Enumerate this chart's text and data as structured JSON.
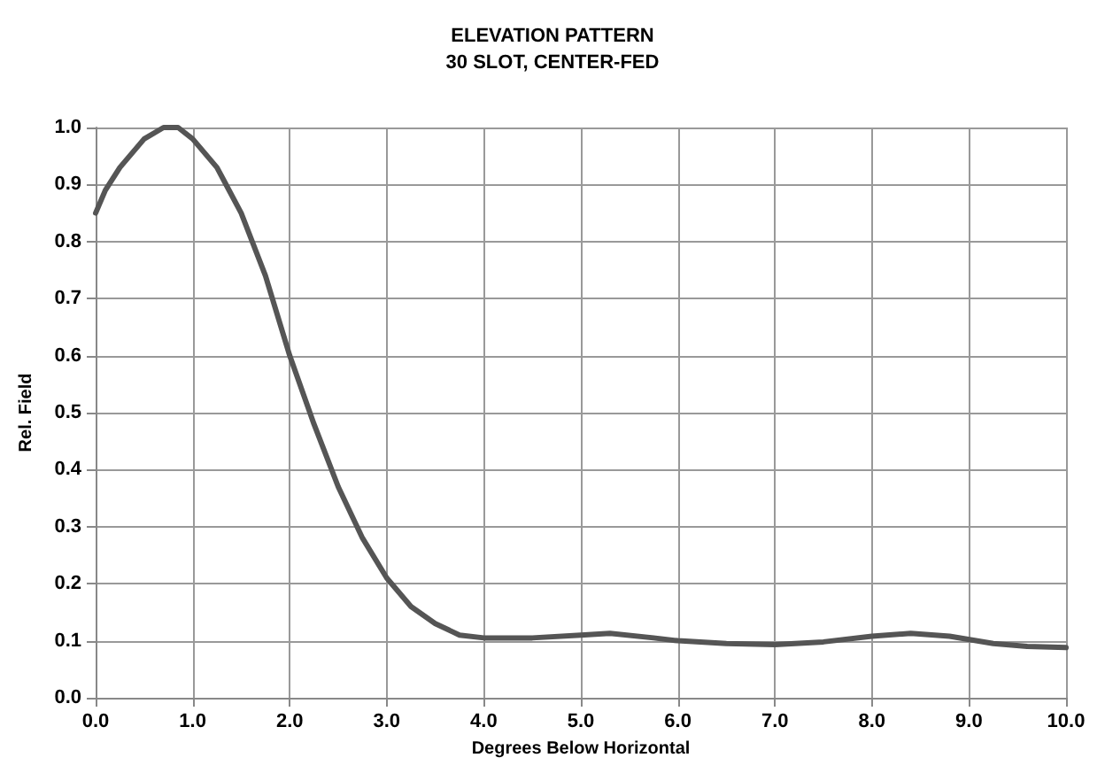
{
  "chart_data": {
    "type": "line",
    "title": "ELEVATION PATTERN",
    "subtitle": "30 SLOT, CENTER-FED",
    "xlabel": "Degrees Below Horizontal",
    "ylabel": "Rel. Field",
    "x": [
      0,
      0.1,
      0.25,
      0.5,
      0.7,
      0.85,
      1.0,
      1.25,
      1.5,
      1.75,
      2.0,
      2.25,
      2.5,
      2.75,
      3.0,
      3.25,
      3.5,
      3.75,
      4.0,
      4.5,
      5.0,
      5.3,
      5.75,
      6.0,
      6.5,
      7.0,
      7.5,
      8.0,
      8.4,
      8.8,
      9.25,
      9.6,
      10.0
    ],
    "series": [
      {
        "color": "#555555",
        "values": [
          0.85,
          0.89,
          0.93,
          0.98,
          1.0,
          1.0,
          0.98,
          0.93,
          0.85,
          0.74,
          0.6,
          0.48,
          0.37,
          0.28,
          0.21,
          0.16,
          0.13,
          0.11,
          0.105,
          0.105,
          0.11,
          0.113,
          0.105,
          0.1,
          0.095,
          0.093,
          0.098,
          0.108,
          0.113,
          0.108,
          0.095,
          0.09,
          0.088
        ]
      }
    ],
    "xlim": [
      0,
      10
    ],
    "xticks": [
      {
        "value": 0,
        "label": "0.0"
      },
      {
        "value": 1,
        "label": "1.0"
      },
      {
        "value": 2,
        "label": "2.0"
      },
      {
        "value": 3,
        "label": "3.0"
      },
      {
        "value": 4,
        "label": "4.0"
      },
      {
        "value": 5,
        "label": "5.0"
      },
      {
        "value": 6,
        "label": "6.0"
      },
      {
        "value": 7,
        "label": "7.0"
      },
      {
        "value": 8,
        "label": "8.0"
      },
      {
        "value": 9,
        "label": "9.0"
      },
      {
        "value": 10,
        "label": "10.0"
      }
    ],
    "ylim": [
      0,
      1
    ],
    "yticks": [
      {
        "value": 0,
        "label": "0.0"
      },
      {
        "value": 0.1,
        "label": "0.1"
      },
      {
        "value": 0.2,
        "label": "0.2"
      },
      {
        "value": 0.3,
        "label": "0.3"
      },
      {
        "value": 0.4,
        "label": "0.4"
      },
      {
        "value": 0.5,
        "label": "0.5"
      },
      {
        "value": 0.6,
        "label": "0.6"
      },
      {
        "value": 0.7,
        "label": "0.7"
      },
      {
        "value": 0.8,
        "label": "0.8"
      },
      {
        "value": 0.9,
        "label": "0.9"
      },
      {
        "value": 1,
        "label": "1.0"
      }
    ],
    "grid": true,
    "marker": "none",
    "line_style": "solid"
  }
}
